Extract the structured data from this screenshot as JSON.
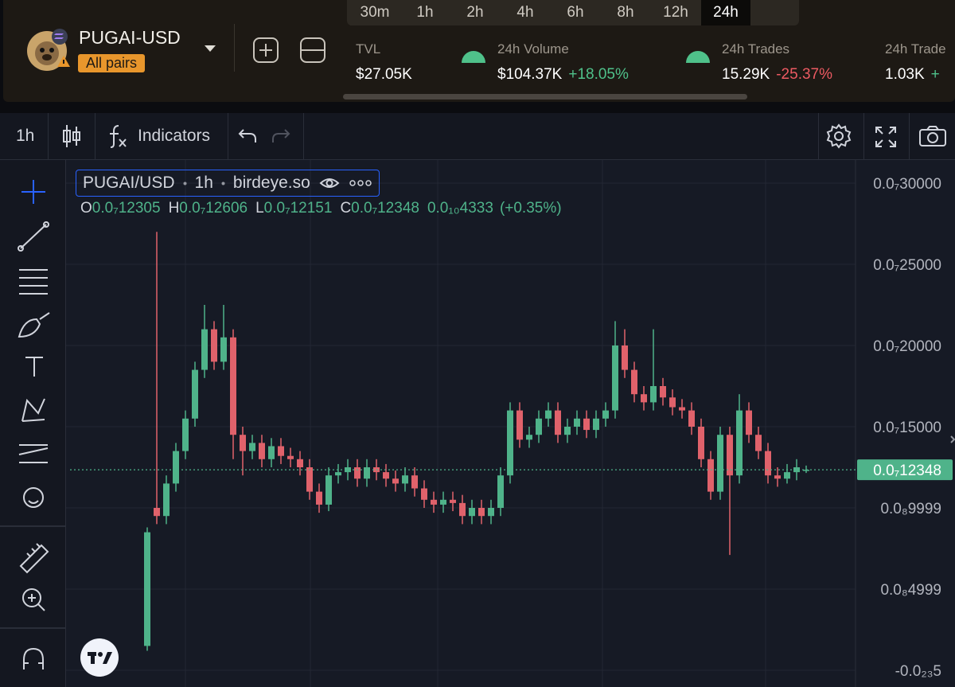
{
  "header": {
    "pair": "PUGAI-USD",
    "all_pairs": "All pairs",
    "timeframes": [
      "30m",
      "1h",
      "2h",
      "4h",
      "6h",
      "8h",
      "12h",
      "24h"
    ],
    "stats": [
      {
        "label": "TVL",
        "value": "$27.05K"
      },
      {
        "label": "24h Volume",
        "value": "$104.37K",
        "change": "+18.05%"
      },
      {
        "label": "24h Trades",
        "value": "15.29K",
        "change": "-25.37%"
      },
      {
        "label": "24h Trade",
        "value": "1.03K",
        "change": "+"
      }
    ]
  },
  "toolbar": {
    "interval": "1h",
    "indicators": "Indicators"
  },
  "legend": {
    "symbol": "PUGAI/USD",
    "interval": "1h",
    "source": "birdeye.so",
    "ohlc": [
      {
        "key": "O",
        "value": "0.0₇12305"
      },
      {
        "key": "H",
        "value": "0.0₇12606"
      },
      {
        "key": "L",
        "value": "0.0₇12151"
      },
      {
        "key": "C",
        "value": "0.0₇12348"
      }
    ],
    "change": "0.0₁₀4333",
    "change_pct": "(+0.35%)"
  },
  "chart_data": {
    "type": "candlestick",
    "up_color": "#4fb38a",
    "down_color": "#e0626b",
    "last_price": 1.2348e-08,
    "last_price_label": "0.0₇12348",
    "ylim": [
      -8.82e-10,
      3.1225e-08
    ],
    "yticks": [
      {
        "value": 3e-08,
        "label": "0.0₇30000"
      },
      {
        "value": 2.5e-08,
        "label": "0.0₇25000"
      },
      {
        "value": 2e-08,
        "label": "0.0₇20000"
      },
      {
        "value": 1.5e-08,
        "label": "0.0₇15000"
      },
      {
        "value": 9.999e-09,
        "label": "0.0₈9999"
      },
      {
        "value": 4.999e-09,
        "label": "0.0₈4999"
      },
      {
        "value": -5e-24,
        "label": "-0.0₂₃5"
      }
    ],
    "grid": true,
    "open": [
      1.5e-09,
      1e-08,
      9.5e-09,
      1.15e-08,
      1.35e-08,
      1.55e-08,
      1.85e-08,
      2.1e-08,
      1.9e-08,
      2.05e-08,
      1.45e-08,
      1.35e-08,
      1.4e-08,
      1.3e-08,
      1.38e-08,
      1.32e-08,
      1.3e-08,
      1.25e-08,
      1.1e-08,
      1.02e-08,
      1.2e-08,
      1.22e-08,
      1.25e-08,
      1.18e-08,
      1.25e-08,
      1.22e-08,
      1.18e-08,
      1.15e-08,
      1.2e-08,
      1.12e-08,
      1.05e-08,
      1.02e-08,
      1.05e-08,
      1.03e-08,
      9.5e-09,
      1e-08,
      9.5e-09,
      1e-08,
      1.2e-08,
      1.6e-08,
      1.42e-08,
      1.45e-08,
      1.55e-08,
      1.6e-08,
      1.45e-08,
      1.5e-08,
      1.55e-08,
      1.48e-08,
      1.55e-08,
      1.6e-08,
      2e-08,
      1.85e-08,
      1.7e-08,
      1.65e-08,
      1.75e-08,
      1.68e-08,
      1.62e-08,
      1.6e-08,
      1.5e-08,
      1.3e-08,
      1.1e-08,
      1.45e-08,
      1.2e-08,
      1.6e-08,
      1.45e-08,
      1.35e-08,
      1.2e-08,
      1.18e-08,
      1.22e-08,
      1.2305e-08
    ],
    "high": [
      8.8e-09,
      2.7e-08,
      1.2e-08,
      1.4e-08,
      1.6e-08,
      1.9e-08,
      2.25e-08,
      2.15e-08,
      2.25e-08,
      2.1e-08,
      1.5e-08,
      1.45e-08,
      1.45e-08,
      1.43e-08,
      1.43e-08,
      1.37e-08,
      1.35e-08,
      1.3e-08,
      1.15e-08,
      1.25e-08,
      1.27e-08,
      1.3e-08,
      1.3e-08,
      1.3e-08,
      1.3e-08,
      1.27e-08,
      1.23e-08,
      1.25e-08,
      1.25e-08,
      1.17e-08,
      1.1e-08,
      1.1e-08,
      1.1e-08,
      1.08e-08,
      1.05e-08,
      1.05e-08,
      1.05e-08,
      1.25e-08,
      1.65e-08,
      1.65e-08,
      1.5e-08,
      1.6e-08,
      1.65e-08,
      1.65e-08,
      1.55e-08,
      1.6e-08,
      1.6e-08,
      1.6e-08,
      1.65e-08,
      2.15e-08,
      2.1e-08,
      1.9e-08,
      1.75e-08,
      2.1e-08,
      1.8e-08,
      1.73e-08,
      1.67e-08,
      1.65e-08,
      1.55e-08,
      1.35e-08,
      1.5e-08,
      1.5e-08,
      1.7e-08,
      1.65e-08,
      1.5e-08,
      1.4e-08,
      1.25e-08,
      1.27e-08,
      1.3e-08,
      1.2606e-08
    ],
    "low": [
      1.2e-09,
      9e-09,
      9e-09,
      1.1e-08,
      1.3e-08,
      1.5e-08,
      1.8e-08,
      1.85e-08,
      1.85e-08,
      1.3e-08,
      1.2e-08,
      1.3e-08,
      1.25e-08,
      1.25e-08,
      1.27e-08,
      1.25e-08,
      1.2e-08,
      1.05e-08,
      9.7e-09,
      9.8e-09,
      1.15e-08,
      1.17e-08,
      1.13e-08,
      1.13e-08,
      1.17e-08,
      1.13e-08,
      1.1e-08,
      1.1e-08,
      1.07e-08,
      1e-08,
      9.7e-09,
      9.7e-09,
      9.8e-09,
      9e-09,
      9e-09,
      9e-09,
      9e-09,
      9.5e-09,
      1.15e-08,
      1.37e-08,
      1.37e-08,
      1.4e-08,
      1.5e-08,
      1.4e-08,
      1.4e-08,
      1.45e-08,
      1.43e-08,
      1.43e-08,
      1.5e-08,
      1.55e-08,
      1.8e-08,
      1.65e-08,
      1.6e-08,
      1.6e-08,
      1.63e-08,
      1.57e-08,
      1.55e-08,
      1.45e-08,
      1.25e-08,
      1.05e-08,
      1.05e-08,
      7.1e-09,
      1.15e-08,
      1.4e-08,
      1.3e-08,
      1.15e-08,
      1.13e-08,
      1.15e-08,
      1.17e-08,
      1.2151e-08
    ],
    "close": [
      8.5e-09,
      9.5e-09,
      1.15e-08,
      1.35e-08,
      1.55e-08,
      1.85e-08,
      2.1e-08,
      1.9e-08,
      2.05e-08,
      1.45e-08,
      1.35e-08,
      1.4e-08,
      1.3e-08,
      1.38e-08,
      1.32e-08,
      1.3e-08,
      1.25e-08,
      1.1e-08,
      1.02e-08,
      1.2e-08,
      1.22e-08,
      1.25e-08,
      1.18e-08,
      1.25e-08,
      1.22e-08,
      1.18e-08,
      1.15e-08,
      1.2e-08,
      1.12e-08,
      1.05e-08,
      1.02e-08,
      1.05e-08,
      1.03e-08,
      9.5e-09,
      1e-08,
      9.5e-09,
      1e-08,
      1.2e-08,
      1.6e-08,
      1.42e-08,
      1.45e-08,
      1.55e-08,
      1.6e-08,
      1.45e-08,
      1.5e-08,
      1.55e-08,
      1.48e-08,
      1.55e-08,
      1.6e-08,
      2e-08,
      1.85e-08,
      1.7e-08,
      1.65e-08,
      1.75e-08,
      1.68e-08,
      1.62e-08,
      1.6e-08,
      1.5e-08,
      1.3e-08,
      1.1e-08,
      1.45e-08,
      1.2e-08,
      1.6e-08,
      1.45e-08,
      1.35e-08,
      1.2e-08,
      1.18e-08,
      1.22e-08,
      1.25e-08,
      1.2348e-08
    ]
  }
}
